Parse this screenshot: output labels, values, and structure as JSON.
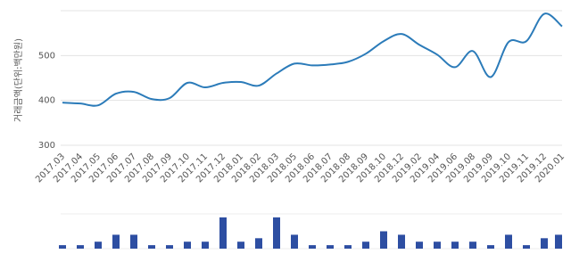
{
  "chart_data": [
    {
      "type": "line",
      "y_label": "거래금액(단위:백만원)",
      "categories": [
        "2017.03",
        "2017.04",
        "2017.05",
        "2017.06",
        "2017.07",
        "2017.08",
        "2017.09",
        "2017.10",
        "2017.11",
        "2017.12",
        "2018.01",
        "2018.02",
        "2018.03",
        "2018.05",
        "2018.06",
        "2018.07",
        "2018.08",
        "2018.09",
        "2018.10",
        "2018.12",
        "2019.02",
        "2019.04",
        "2019.06",
        "2019.08",
        "2019.09",
        "2019.10",
        "2019.11",
        "2019.12",
        "2020.01"
      ],
      "values": [
        395,
        393,
        389,
        415,
        419,
        403,
        405,
        439,
        429,
        439,
        441,
        433,
        460,
        482,
        478,
        480,
        486,
        504,
        532,
        548,
        524,
        502,
        474,
        510,
        452,
        530,
        532,
        593,
        565
      ],
      "color": "#2b7bb9",
      "ylim": [
        290,
        600
      ],
      "yticks": [
        300,
        400,
        500
      ],
      "grid": true
    },
    {
      "type": "bar",
      "values": [
        1,
        1,
        2,
        4,
        4,
        1,
        1,
        2,
        2,
        9,
        2,
        3,
        9,
        4,
        1,
        1,
        1,
        2,
        5,
        4,
        2,
        2,
        2,
        2,
        1,
        4,
        1,
        3,
        4
      ],
      "color": "#2d4ea2",
      "ylim": [
        0,
        9.5
      ]
    }
  ]
}
